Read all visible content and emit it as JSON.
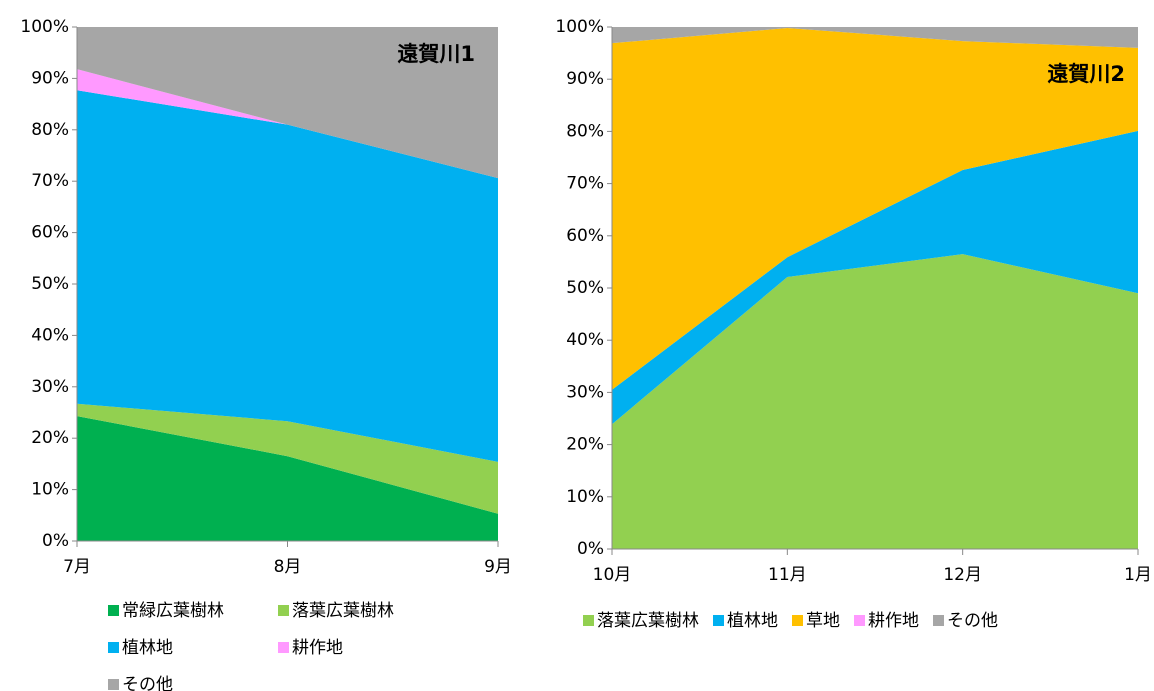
{
  "chart_data": [
    {
      "type": "stacked-area",
      "annotation": "遠賀川1",
      "categories": [
        "7月",
        "8月",
        "9月"
      ],
      "series": [
        {
          "name": "常緑広葉樹林",
          "color": "#00b050",
          "values": [
            24.3,
            16.5,
            5.3
          ]
        },
        {
          "name": "落葉広葉樹林",
          "color": "#92d050",
          "values": [
            2.4,
            6.8,
            10.1
          ]
        },
        {
          "name": "植林地",
          "color": "#00b0f0",
          "values": [
            61,
            57.7,
            55.2
          ]
        },
        {
          "name": "耕作地",
          "color": "#ff99ff",
          "values": [
            4.1,
            0,
            0
          ]
        },
        {
          "name": "その他",
          "color": "#a6a6a6",
          "values": [
            8.2,
            19,
            29.4
          ]
        }
      ],
      "ylim": [
        0,
        100
      ],
      "yticks": [
        {
          "value": 0,
          "label": "0%"
        },
        {
          "value": 10,
          "label": "10%"
        },
        {
          "value": 20,
          "label": "20%"
        },
        {
          "value": 30,
          "label": "30%"
        },
        {
          "value": 40,
          "label": "40%"
        },
        {
          "value": 50,
          "label": "50%"
        },
        {
          "value": 60,
          "label": "60%"
        },
        {
          "value": 70,
          "label": "70%"
        },
        {
          "value": 80,
          "label": "80%"
        },
        {
          "value": 90,
          "label": "90%"
        },
        {
          "value": 100,
          "label": "100%"
        }
      ]
    },
    {
      "type": "stacked-area",
      "annotation": "遠賀川2",
      "categories": [
        "10月",
        "11月",
        "12月",
        "1月"
      ],
      "series": [
        {
          "name": "落葉広葉樹林",
          "color": "#92d050",
          "values": [
            23.9,
            52.1,
            56.5,
            49.0
          ]
        },
        {
          "name": "植林地",
          "color": "#00b0f0",
          "values": [
            6.6,
            3.8,
            16.1,
            31.1
          ]
        },
        {
          "name": "草地",
          "color": "#ffc000",
          "values": [
            66.4,
            43.9,
            24.7,
            15.9
          ]
        },
        {
          "name": "耕作地",
          "color": "#ff99ff",
          "values": [
            0,
            0,
            0,
            0
          ]
        },
        {
          "name": "その他",
          "color": "#a6a6a6",
          "values": [
            3.1,
            0.2,
            2.7,
            4.0
          ]
        }
      ],
      "ylim": [
        0,
        100
      ],
      "yticks": [
        {
          "value": 0,
          "label": "0%"
        },
        {
          "value": 10,
          "label": "10%"
        },
        {
          "value": 20,
          "label": "20%"
        },
        {
          "value": 30,
          "label": "30%"
        },
        {
          "value": 40,
          "label": "40%"
        },
        {
          "value": 50,
          "label": "50%"
        },
        {
          "value": 60,
          "label": "60%"
        },
        {
          "value": 70,
          "label": "70%"
        },
        {
          "value": 80,
          "label": "80%"
        },
        {
          "value": 90,
          "label": "90%"
        },
        {
          "value": 100,
          "label": "100%"
        }
      ]
    }
  ]
}
